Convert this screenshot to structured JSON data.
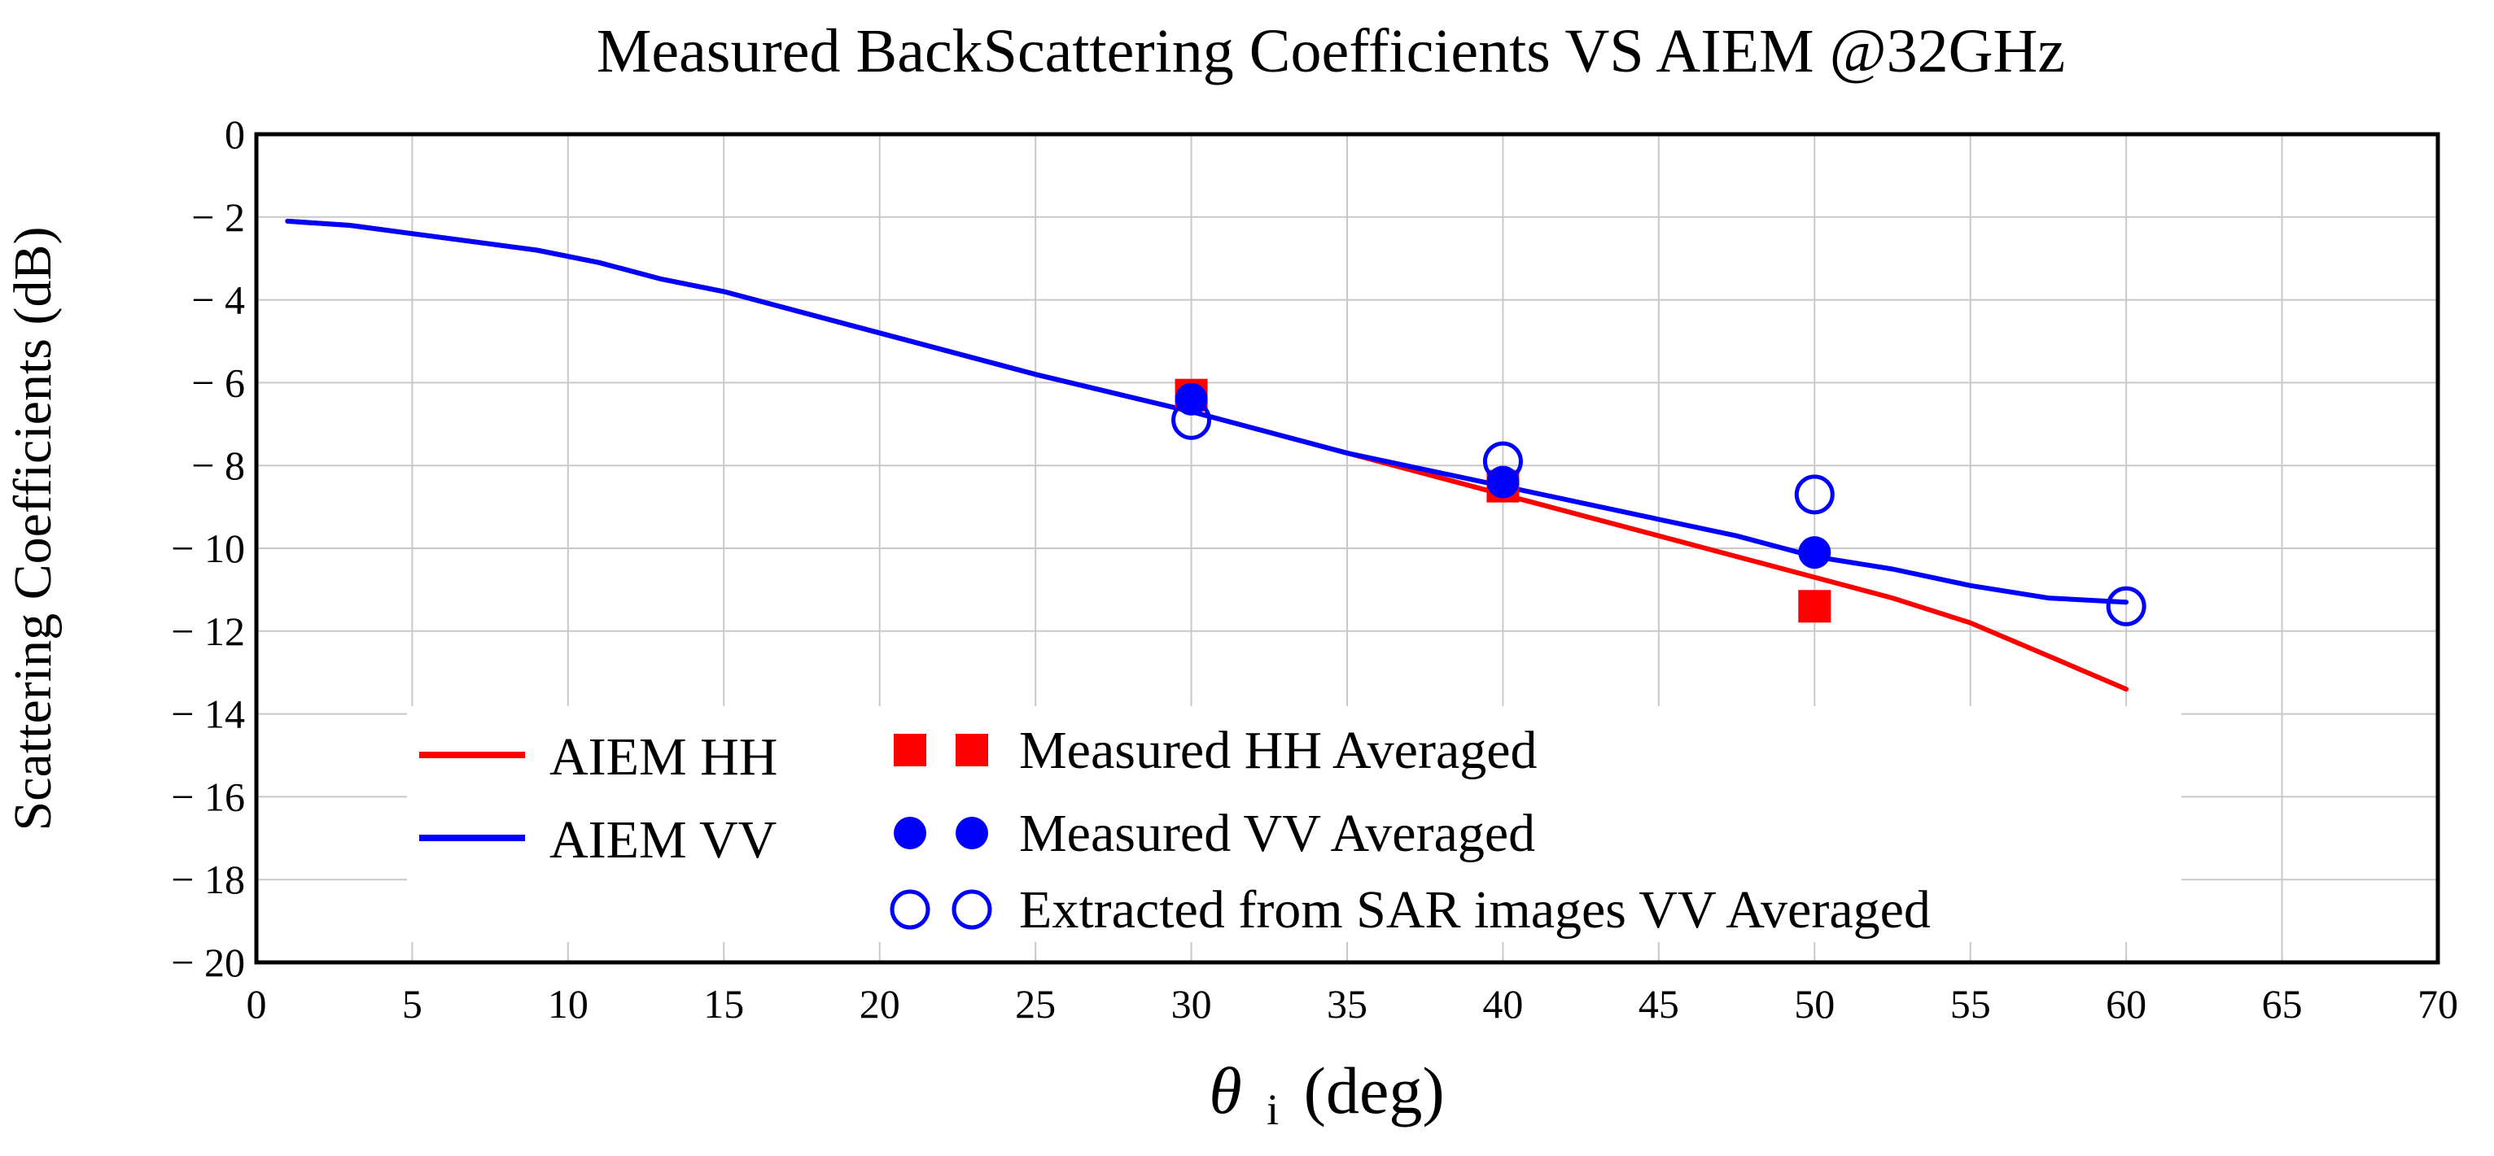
{
  "chart_data": {
    "type": "line",
    "title": "Measured BackScattering Coefficients VS AIEM @32GHz",
    "xlabel_symbol": "θ",
    "xlabel_subscript": "i",
    "xlabel_unit": "(deg)",
    "ylabel": "Scattering Coefficients (dB)",
    "xlim": [
      0,
      70
    ],
    "ylim": [
      -20,
      0
    ],
    "xticks": [
      0,
      5,
      10,
      15,
      20,
      25,
      30,
      35,
      40,
      45,
      50,
      55,
      60,
      65,
      70
    ],
    "yticks": [
      0,
      -2,
      -4,
      -6,
      -8,
      -10,
      -12,
      -14,
      -16,
      -18,
      -20
    ],
    "xtick_labels": [
      "0",
      "5",
      "10",
      "15",
      "20",
      "25",
      "30",
      "35",
      "40",
      "45",
      "50",
      "55",
      "60",
      "65",
      "70"
    ],
    "ytick_labels": [
      "0",
      "− 2",
      "− 4",
      "− 6",
      "− 8",
      "− 10",
      "− 12",
      "− 14",
      "− 16",
      "− 18",
      "− 20"
    ],
    "grid": true,
    "legend_position": "bottom-left",
    "series": [
      {
        "name": "AIEM HH",
        "kind": "line",
        "color": "#ff0000",
        "x": [
          1,
          3,
          5,
          7,
          9,
          11,
          13,
          15,
          20,
          25,
          30,
          35,
          40,
          45,
          50,
          52.5,
          55,
          57.5,
          60
        ],
        "y": [
          -2.1,
          -2.2,
          -2.4,
          -2.6,
          -2.8,
          -3.1,
          -3.5,
          -3.8,
          -4.8,
          -5.8,
          -6.7,
          -7.7,
          -8.7,
          -9.7,
          -10.7,
          -11.2,
          -11.8,
          -12.6,
          -13.4
        ]
      },
      {
        "name": "AIEM VV",
        "kind": "line",
        "color": "#0000ff",
        "x": [
          1,
          3,
          5,
          7,
          9,
          11,
          13,
          15,
          20,
          25,
          30,
          35,
          40,
          45,
          47.5,
          50,
          52.5,
          55,
          57.5,
          60
        ],
        "y": [
          -2.1,
          -2.2,
          -2.4,
          -2.6,
          -2.8,
          -3.1,
          -3.5,
          -3.8,
          -4.8,
          -5.8,
          -6.7,
          -7.7,
          -8.5,
          -9.3,
          -9.7,
          -10.2,
          -10.5,
          -10.9,
          -11.2,
          -11.3
        ]
      },
      {
        "name": "Measured HH Averaged",
        "kind": "marker",
        "marker": "filled-square",
        "color": "#ff0000",
        "x": [
          30,
          40,
          50
        ],
        "y": [
          -6.3,
          -8.5,
          -11.4
        ]
      },
      {
        "name": "Measured VV Averaged",
        "kind": "marker",
        "marker": "filled-circle",
        "color": "#0000ff",
        "x": [
          30,
          40,
          50
        ],
        "y": [
          -6.4,
          -8.4,
          -10.1
        ]
      },
      {
        "name": "Extracted from SAR images VV Averaged",
        "kind": "marker",
        "marker": "open-circle",
        "color": "#0000ff",
        "x": [
          30,
          40,
          50,
          60
        ],
        "y": [
          -6.9,
          -7.9,
          -8.7,
          -11.4
        ]
      }
    ]
  }
}
